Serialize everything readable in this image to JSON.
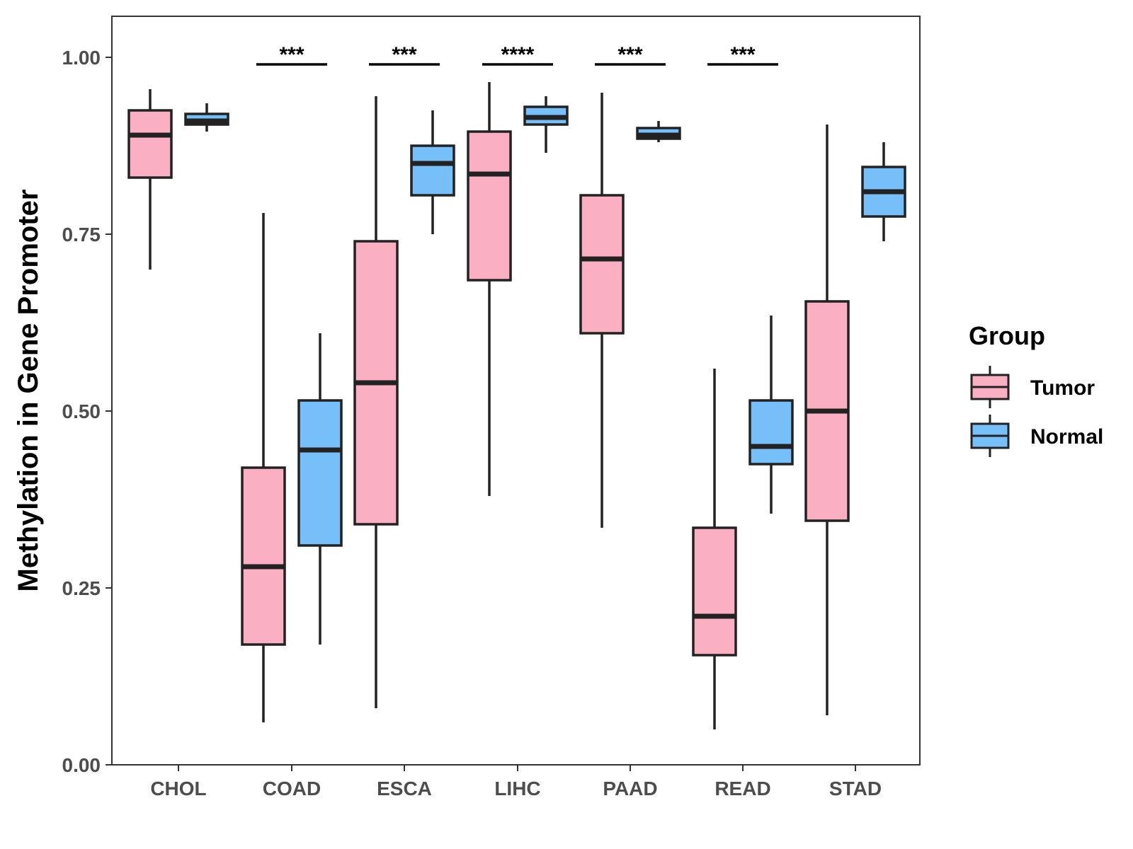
{
  "chart_data": {
    "type": "boxplot",
    "title": "",
    "xlabel": "",
    "ylabel": "Methylation in Gene Promoter",
    "ylim": [
      0,
      1.05
    ],
    "yticks": [
      0.0,
      0.25,
      0.5,
      0.75,
      1.0
    ],
    "ytick_labels": [
      "0.00",
      "0.25",
      "0.50",
      "0.75",
      "1.00"
    ],
    "categories": [
      "CHOL",
      "COAD",
      "ESCA",
      "LIHC",
      "PAAD",
      "READ",
      "STAD"
    ],
    "legend": {
      "title": "Group",
      "position": "right",
      "entries": [
        "Tumor",
        "Normal"
      ]
    },
    "colors": {
      "Tumor": "#fbafc3",
      "Normal": "#76bff8",
      "outline": "#222222"
    },
    "series": [
      {
        "name": "Tumor",
        "boxes": [
          {
            "category": "CHOL",
            "min": 0.7,
            "q1": 0.83,
            "median": 0.89,
            "q3": 0.925,
            "max": 0.955
          },
          {
            "category": "COAD",
            "min": 0.06,
            "q1": 0.17,
            "median": 0.28,
            "q3": 0.42,
            "max": 0.78
          },
          {
            "category": "ESCA",
            "min": 0.08,
            "q1": 0.34,
            "median": 0.54,
            "q3": 0.74,
            "max": 0.945
          },
          {
            "category": "LIHC",
            "min": 0.38,
            "q1": 0.685,
            "median": 0.835,
            "q3": 0.895,
            "max": 0.965
          },
          {
            "category": "PAAD",
            "min": 0.335,
            "q1": 0.61,
            "median": 0.715,
            "q3": 0.805,
            "max": 0.95
          },
          {
            "category": "READ",
            "min": 0.05,
            "q1": 0.155,
            "median": 0.21,
            "q3": 0.335,
            "max": 0.56
          },
          {
            "category": "STAD",
            "min": 0.07,
            "q1": 0.345,
            "median": 0.5,
            "q3": 0.655,
            "max": 0.905
          }
        ]
      },
      {
        "name": "Normal",
        "boxes": [
          {
            "category": "CHOL",
            "min": 0.895,
            "q1": 0.905,
            "median": 0.91,
            "q3": 0.92,
            "max": 0.935
          },
          {
            "category": "COAD",
            "min": 0.17,
            "q1": 0.31,
            "median": 0.445,
            "q3": 0.515,
            "max": 0.61
          },
          {
            "category": "ESCA",
            "min": 0.75,
            "q1": 0.805,
            "median": 0.85,
            "q3": 0.875,
            "max": 0.925
          },
          {
            "category": "LIHC",
            "min": 0.865,
            "q1": 0.905,
            "median": 0.915,
            "q3": 0.93,
            "max": 0.945
          },
          {
            "category": "PAAD",
            "min": 0.88,
            "q1": 0.885,
            "median": 0.89,
            "q3": 0.9,
            "max": 0.91
          },
          {
            "category": "READ",
            "min": 0.355,
            "q1": 0.425,
            "median": 0.45,
            "q3": 0.515,
            "max": 0.635
          },
          {
            "category": "STAD",
            "min": 0.74,
            "q1": 0.775,
            "median": 0.81,
            "q3": 0.845,
            "max": 0.88
          }
        ]
      }
    ],
    "annotations": [
      {
        "category": "COAD",
        "label": "***",
        "y": 0.99
      },
      {
        "category": "ESCA",
        "label": "***",
        "y": 0.99
      },
      {
        "category": "LIHC",
        "label": "****",
        "y": 0.99
      },
      {
        "category": "PAAD",
        "label": "***",
        "y": 0.99
      },
      {
        "category": "READ",
        "label": "***",
        "y": 0.99
      }
    ]
  }
}
